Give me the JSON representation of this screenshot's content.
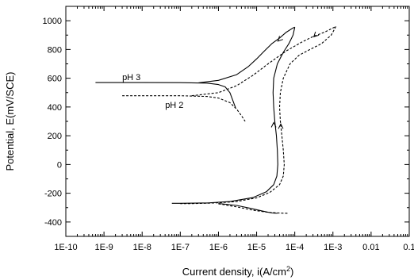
{
  "chart_data": {
    "type": "line",
    "title": "",
    "xlabel": "Current density, i(A/cm",
    "xlabel_sup": "2",
    "xlabel_close": ")",
    "ylabel": "Potential, E(mV/SCE)",
    "x_scale": "log",
    "xlim": [
      1e-10,
      0.1
    ],
    "ylim": [
      -500,
      1100
    ],
    "x_ticks": [
      {
        "value": 1e-10,
        "label": "1E-10"
      },
      {
        "value": 1e-09,
        "label": "1E-9"
      },
      {
        "value": 1e-08,
        "label": "1E-8"
      },
      {
        "value": 1e-07,
        "label": "1E-7"
      },
      {
        "value": 1e-06,
        "label": "1E-6"
      },
      {
        "value": 1e-05,
        "label": "1E-5"
      },
      {
        "value": 0.0001,
        "label": "1E-4"
      },
      {
        "value": 0.001,
        "label": "1E-3"
      },
      {
        "value": 0.01,
        "label": "0.01"
      },
      {
        "value": 0.1,
        "label": "0.1"
      }
    ],
    "y_ticks": [
      {
        "value": 1000,
        "label": "1000"
      },
      {
        "value": 800,
        "label": "800"
      },
      {
        "value": 600,
        "label": "600"
      },
      {
        "value": 400,
        "label": "400"
      },
      {
        "value": 200,
        "label": "200"
      },
      {
        "value": 0,
        "label": "0"
      },
      {
        "value": -200,
        "label": "-200"
      },
      {
        "value": -400,
        "label": "-400"
      }
    ],
    "grid": false,
    "series": [
      {
        "name": "pH 3",
        "style": "solid",
        "color": "#000000",
        "segments": [
          [
            [
              6e-10,
              570
            ],
            [
              1e-08,
              570
            ],
            [
              1e-07,
              569
            ],
            [
              5e-07,
              566
            ],
            [
              1e-06,
              556
            ],
            [
              1.5e-06,
              540
            ],
            [
              2e-06,
              500
            ],
            [
              2.5e-06,
              430
            ],
            [
              2.8e-06,
              395
            ]
          ],
          [
            [
              3e-07,
              568
            ],
            [
              1e-06,
              585
            ],
            [
              3e-06,
              625
            ],
            [
              6e-06,
              680
            ],
            [
              1e-05,
              735
            ],
            [
              1.6e-05,
              790
            ],
            [
              2.5e-05,
              840
            ],
            [
              4e-05,
              880
            ],
            [
              6e-05,
              920
            ],
            [
              9e-05,
              950
            ],
            [
              0.0001,
              955
            ]
          ],
          [
            [
              0.0001,
              955
            ],
            [
              9e-05,
              900
            ],
            [
              7e-05,
              840
            ],
            [
              5e-05,
              780
            ],
            [
              3.5e-05,
              700
            ],
            [
              2.8e-05,
              600
            ],
            [
              2.7e-05,
              500
            ],
            [
              2.8e-05,
              400
            ],
            [
              3e-05,
              300
            ],
            [
              3.3e-05,
              200
            ],
            [
              3.5e-05,
              100
            ],
            [
              3.6e-05,
              0
            ],
            [
              3.4e-05,
              -80
            ],
            [
              2.8e-05,
              -140
            ],
            [
              1.8e-05,
              -190
            ],
            [
              8e-06,
              -230
            ],
            [
              2e-06,
              -258
            ],
            [
              5e-07,
              -268
            ],
            [
              1e-07,
              -270
            ],
            [
              6e-08,
              -270
            ]
          ],
          [
            [
              1e-06,
              -271
            ],
            [
              3e-06,
              -285
            ],
            [
              7e-06,
              -305
            ],
            [
              1.5e-05,
              -325
            ],
            [
              2.5e-05,
              -337
            ],
            [
              3.5e-05,
              -340
            ]
          ]
        ]
      },
      {
        "name": "pH 2",
        "style": "dashed",
        "color": "#000000",
        "segments": [
          [
            [
              3e-09,
              478
            ],
            [
              1e-08,
              478
            ],
            [
              1e-07,
              478
            ],
            [
              5e-07,
              473
            ],
            [
              1e-06,
              462
            ],
            [
              2e-06,
              430
            ],
            [
              3e-06,
              385
            ],
            [
              4e-06,
              340
            ],
            [
              5e-06,
              300
            ]
          ],
          [
            [
              2e-07,
              478
            ],
            [
              1e-06,
              500
            ],
            [
              3e-06,
              548
            ],
            [
              8e-06,
              620
            ],
            [
              2e-05,
              700
            ],
            [
              6e-05,
              790
            ],
            [
              0.00015,
              850
            ],
            [
              0.0003,
              890
            ],
            [
              0.0006,
              920
            ],
            [
              0.001,
              950
            ],
            [
              0.0012,
              960
            ]
          ],
          [
            [
              0.0012,
              960
            ],
            [
              0.0009,
              900
            ],
            [
              0.0005,
              840
            ],
            [
              0.00025,
              800
            ],
            [
              0.00013,
              760
            ],
            [
              7.5e-05,
              700
            ],
            [
              5e-05,
              600
            ],
            [
              4.2e-05,
              500
            ],
            [
              4e-05,
              400
            ],
            [
              4.2e-05,
              300
            ],
            [
              4.6e-05,
              200
            ],
            [
              5e-05,
              100
            ],
            [
              5.3e-05,
              0
            ],
            [
              5e-05,
              -80
            ],
            [
              4e-05,
              -140
            ],
            [
              2.2e-05,
              -195
            ],
            [
              1e-05,
              -232
            ],
            [
              3e-06,
              -258
            ],
            [
              8e-07,
              -268
            ],
            [
              2e-07,
              -272
            ],
            [
              1e-07,
              -272
            ]
          ],
          [
            [
              1e-06,
              -273
            ],
            [
              3e-06,
              -295
            ],
            [
              8e-06,
              -318
            ],
            [
              2e-05,
              -333
            ],
            [
              4e-05,
              -338
            ],
            [
              7e-05,
              -340
            ]
          ]
        ]
      }
    ],
    "arrows": [
      {
        "series": "pH 3",
        "x": 4e-05,
        "y": 870,
        "direction": "down-left"
      },
      {
        "series": "pH 2",
        "x": 0.00035,
        "y": 900,
        "direction": "down-left"
      },
      {
        "series": "pH 3",
        "x": 2.8e-05,
        "y": 275,
        "direction": "up"
      },
      {
        "series": "pH 2",
        "x": 4.3e-05,
        "y": 265,
        "direction": "up"
      }
    ],
    "annotations": [
      {
        "text": "pH 3",
        "x": 3e-09,
        "y": 610
      },
      {
        "text": "pH 2",
        "x": 4e-08,
        "y": 415
      }
    ]
  }
}
